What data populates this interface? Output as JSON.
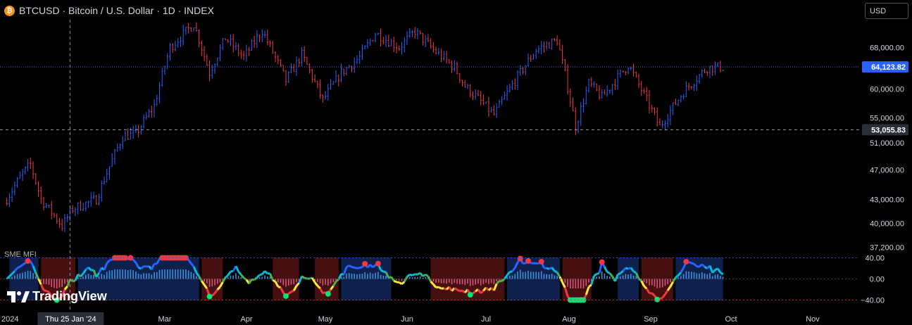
{
  "header": {
    "symbol_icon": "bitcoin-icon",
    "title": "BTCUSD · Bitcoin / U.S. Dollar · 1D · INDEX",
    "currency_button": "USD"
  },
  "indicator": {
    "name": "SME MFI"
  },
  "branding": {
    "logo": "tradingview-logo-icon",
    "text": "TradingView"
  },
  "colors": {
    "up": "#2962ff",
    "down": "#f23645",
    "background": "#000000",
    "price_line": "#2962ff",
    "crosshair": "#9598a1",
    "label_bg": "#2a2e39"
  },
  "chart_data": {
    "type": "candlestick",
    "title": "BTCUSD · Bitcoin / U.S. Dollar · 1D · INDEX",
    "price_axis": {
      "ticks": [
        "68,000.00",
        "60,000.00",
        "55,000.00",
        "51,000.00",
        "47,000.00",
        "43,000.00",
        "40,000.00",
        "37,200.00"
      ],
      "tick_values": [
        68000,
        60000,
        55000,
        51000,
        47000,
        43000,
        40000,
        37200
      ],
      "scale": "log"
    },
    "time_axis": {
      "ticks": [
        "2024",
        "Mar",
        "Apr",
        "May",
        "Jun",
        "Jul",
        "Aug",
        "Sep",
        "Oct",
        "Nov"
      ],
      "crosshair_label": "Thu 25 Jan '24"
    },
    "last_price": {
      "value": 64123.82,
      "label": "64,123.82"
    },
    "crosshair_price": {
      "value": 53055.83,
      "label": "53,055.83"
    },
    "price_path": [
      [
        "2024-01-01",
        42500
      ],
      [
        "2024-01-08",
        46500
      ],
      [
        "2024-01-11",
        47800
      ],
      [
        "2024-01-15",
        43000
      ],
      [
        "2024-01-23",
        39700
      ],
      [
        "2024-01-27",
        41800
      ],
      [
        "2024-02-05",
        43000
      ],
      [
        "2024-02-15",
        52000
      ],
      [
        "2024-02-20",
        52400
      ],
      [
        "2024-02-27",
        57000
      ],
      [
        "2024-03-04",
        68000
      ],
      [
        "2024-03-13",
        73000
      ],
      [
        "2024-03-19",
        63000
      ],
      [
        "2024-03-25",
        70000
      ],
      [
        "2024-04-01",
        66000
      ],
      [
        "2024-04-08",
        71500
      ],
      [
        "2024-04-17",
        61500
      ],
      [
        "2024-04-23",
        66500
      ],
      [
        "2024-05-01",
        58000
      ],
      [
        "2024-05-08",
        63000
      ],
      [
        "2024-05-15",
        66000
      ],
      [
        "2024-05-21",
        71000
      ],
      [
        "2024-05-30",
        68000
      ],
      [
        "2024-06-05",
        71400
      ],
      [
        "2024-06-12",
        67500
      ],
      [
        "2024-06-20",
        64000
      ],
      [
        "2024-06-24",
        60500
      ],
      [
        "2024-07-05",
        55500
      ],
      [
        "2024-07-15",
        63000
      ],
      [
        "2024-07-21",
        67500
      ],
      [
        "2024-07-29",
        69500
      ],
      [
        "2024-08-05",
        53500
      ],
      [
        "2024-08-10",
        61000
      ],
      [
        "2024-08-15",
        58500
      ],
      [
        "2024-08-25",
        64500
      ],
      [
        "2024-09-01",
        58000
      ],
      [
        "2024-09-06",
        53500
      ],
      [
        "2024-09-15",
        59500
      ],
      [
        "2024-09-24",
        64000
      ],
      [
        "2024-09-30",
        64100
      ]
    ],
    "indicator": {
      "name": "SME MFI",
      "ticks": [
        "40.00",
        "0.00",
        "−40.00"
      ],
      "tick_values": [
        40,
        0,
        -40
      ],
      "ylim": [
        -40,
        40
      ]
    }
  }
}
